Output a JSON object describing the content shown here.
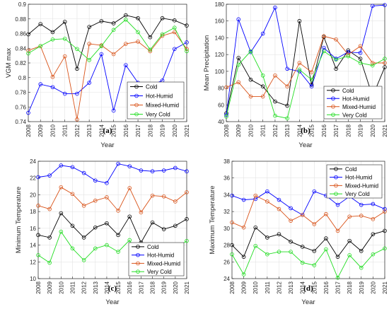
{
  "series_colors": {
    "Cold": "#000000",
    "Hot-Humid": "#0000ff",
    "Mixed-Humid": "#d95319",
    "Very Cold": "#22dd22"
  },
  "chart_data": [
    {
      "type": "line",
      "panel_label": "(a)",
      "xlabel": "Year",
      "ylabel": "VGM max",
      "x": [
        "2008",
        "2009",
        "2010",
        "2011",
        "2012",
        "2013",
        "2014",
        "2015",
        "2016",
        "2017",
        "2018",
        "2019",
        "2020",
        "2021"
      ],
      "ylim": [
        0.74,
        0.9
      ],
      "yticks": [
        0.74,
        0.76,
        0.78,
        0.8,
        0.82,
        0.84,
        0.86,
        0.88,
        0.9
      ],
      "ytick_labels": [
        "0.74",
        "0.76",
        "0.78",
        "0.8",
        "0.82",
        "0.84",
        "0.86",
        "0.88",
        "0.9"
      ],
      "grid": true,
      "legend_position": "bottom-right",
      "series": [
        {
          "name": "Cold",
          "values": [
            0.859,
            0.873,
            0.862,
            0.876,
            0.812,
            0.869,
            0.877,
            0.874,
            0.885,
            0.881,
            0.855,
            0.881,
            0.878,
            0.871
          ]
        },
        {
          "name": "Hot-Humid",
          "values": [
            0.752,
            0.791,
            0.787,
            0.778,
            0.778,
            0.793,
            0.832,
            0.755,
            0.817,
            0.793,
            0.789,
            0.796,
            0.839,
            0.848
          ]
        },
        {
          "name": "Mixed-Humid",
          "values": [
            0.837,
            0.843,
            0.801,
            0.829,
            0.743,
            0.846,
            0.844,
            0.832,
            0.846,
            0.849,
            0.836,
            0.857,
            0.862,
            0.839
          ]
        },
        {
          "name": "Very Cold",
          "values": [
            0.833,
            0.843,
            0.852,
            0.853,
            0.839,
            0.824,
            0.843,
            0.865,
            0.879,
            0.862,
            0.838,
            0.859,
            0.868,
            0.836
          ]
        }
      ]
    },
    {
      "type": "line",
      "panel_label": "(b)",
      "xlabel": "Year",
      "ylabel": "Mean Precipitation",
      "x": [
        "2008",
        "2009",
        "2010",
        "2011",
        "2012",
        "2013",
        "2014",
        "2015",
        "2016",
        "2017",
        "2018",
        "2019",
        "2020",
        "2021"
      ],
      "ylim": [
        40,
        180
      ],
      "yticks": [
        40,
        60,
        80,
        100,
        120,
        140,
        160,
        180
      ],
      "ytick_labels": [
        "40",
        "60",
        "80",
        "100",
        "120",
        "140",
        "160",
        "180"
      ],
      "grid": true,
      "legend_position": "middle-right",
      "series": [
        {
          "name": "Cold",
          "values": [
            50,
            116,
            90,
            82,
            64,
            59,
            160,
            84,
            141,
            103,
            125,
            115,
            70,
            105
          ]
        },
        {
          "name": "Hot-Humid",
          "values": [
            48,
            162,
            123,
            145,
            176,
            103,
            100,
            82,
            128,
            115,
            123,
            122,
            178,
            179
          ]
        },
        {
          "name": "Mixed-Humid",
          "values": [
            81,
            87,
            70,
            70,
            95,
            82,
            110,
            99,
            142,
            138,
            120,
            130,
            110,
            110
          ]
        },
        {
          "name": "Very Cold",
          "values": [
            46,
            108,
            124,
            95,
            47,
            44,
            102,
            90,
            124,
            114,
            118,
            110,
            107,
            115
          ]
        }
      ]
    },
    {
      "type": "line",
      "panel_label": "(c)",
      "xlabel": "Year",
      "ylabel": "Minimum Temperature",
      "x": [
        "2008",
        "2009",
        "2010",
        "2011",
        "2012",
        "2013",
        "2014",
        "2015",
        "2016",
        "2017",
        "2018",
        "2019",
        "2020",
        "2021"
      ],
      "ylim": [
        10,
        24
      ],
      "yticks": [
        10,
        12,
        14,
        16,
        18,
        20,
        22,
        24
      ],
      "ytick_labels": [
        "10",
        "12",
        "14",
        "16",
        "18",
        "20",
        "22",
        "24"
      ],
      "grid": true,
      "legend_position": "bottom-right",
      "series": [
        {
          "name": "Cold",
          "values": [
            15.2,
            14.9,
            17.8,
            16.3,
            14.9,
            16.1,
            16.6,
            15.2,
            17.4,
            14.3,
            16.7,
            15.9,
            16.3,
            17.1
          ]
        },
        {
          "name": "Hot-Humid",
          "values": [
            22.1,
            22.3,
            23.5,
            23.3,
            22.6,
            21.7,
            21.4,
            23.7,
            23.4,
            22.9,
            22.8,
            22.9,
            23.2,
            22.8
          ]
        },
        {
          "name": "Mixed-Humid",
          "values": [
            18.7,
            18.3,
            20.9,
            20.1,
            18.7,
            19.3,
            19.7,
            18.1,
            20.8,
            17.9,
            19.9,
            19.8,
            19.2,
            20.3
          ]
        },
        {
          "name": "Very Cold",
          "values": [
            12.8,
            11.9,
            15.6,
            13.6,
            12.2,
            13.6,
            14.0,
            13.2,
            14.6,
            12.1,
            14.0,
            12.9,
            13.6,
            14.5
          ]
        }
      ]
    },
    {
      "type": "line",
      "panel_label": "(d)",
      "xlabel": "Year",
      "ylabel": "Maximum Temperature",
      "x": [
        "2008",
        "2009",
        "2010",
        "2011",
        "2012",
        "2013",
        "2014",
        "2015",
        "2016",
        "2017",
        "2018",
        "2019",
        "2020",
        "2021"
      ],
      "ylim": [
        24,
        38
      ],
      "yticks": [
        24,
        26,
        28,
        30,
        32,
        34,
        36,
        38
      ],
      "ytick_labels": [
        "24",
        "26",
        "28",
        "30",
        "32",
        "34",
        "36",
        "38"
      ],
      "grid": true,
      "legend_position": "top-right",
      "series": [
        {
          "name": "Cold",
          "values": [
            28.0,
            26.6,
            30.1,
            28.9,
            29.3,
            28.4,
            27.8,
            27.3,
            28.8,
            26.6,
            28.5,
            27.3,
            29.3,
            29.7
          ]
        },
        {
          "name": "Hot-Humid",
          "values": [
            33.9,
            33.4,
            33.5,
            34.4,
            33.4,
            32.4,
            31.6,
            34.4,
            33.9,
            32.8,
            33.8,
            32.8,
            32.9,
            32.3
          ]
        },
        {
          "name": "Mixed-Humid",
          "values": [
            30.7,
            30.1,
            33.9,
            33.2,
            32.3,
            30.9,
            31.6,
            30.5,
            31.7,
            29.7,
            31.4,
            31.5,
            31.1,
            32.0
          ]
        },
        {
          "name": "Very Cold",
          "values": [
            26.9,
            24.5,
            27.9,
            26.9,
            27.2,
            27.2,
            25.9,
            25.6,
            27.5,
            24.1,
            26.8,
            25.3,
            26.9,
            27.6
          ]
        }
      ]
    }
  ]
}
